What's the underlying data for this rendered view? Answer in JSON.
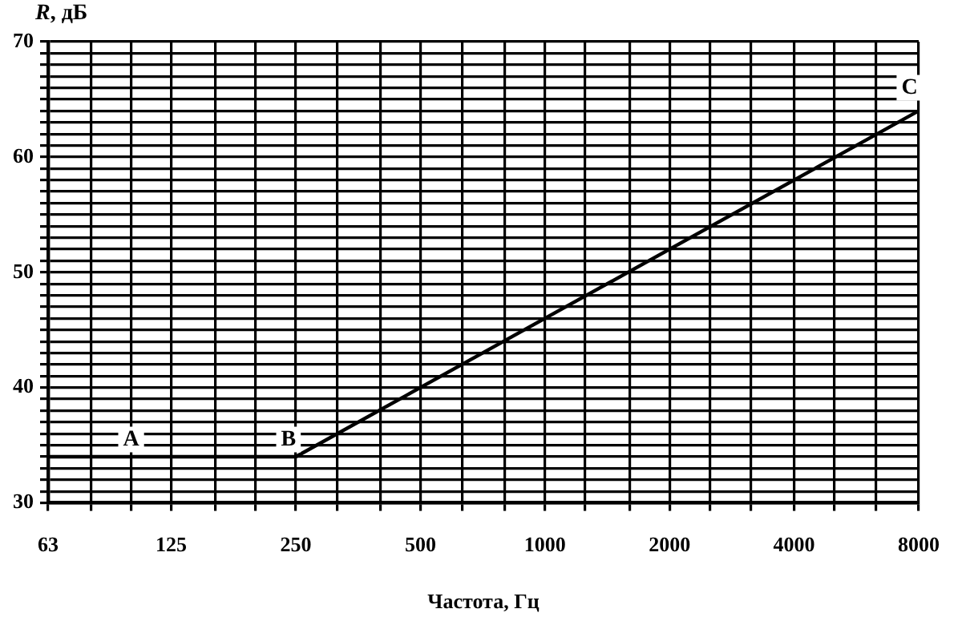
{
  "chart_data": {
    "type": "line",
    "xlabel": "Частота, Гц",
    "ylabel": "R, дБ",
    "log": "x",
    "grid": true,
    "legend": false,
    "marker": "none",
    "line_style": "solid",
    "xlim": [
      63,
      8000
    ],
    "xticks": [
      63,
      {
        "value": 80,
        "label": null
      },
      {
        "value": 100,
        "label": null
      },
      125,
      {
        "value": 160,
        "label": null
      },
      {
        "value": 200,
        "label": null
      },
      250,
      {
        "value": 315,
        "label": null
      },
      {
        "value": 400,
        "label": null
      },
      500,
      {
        "value": 630,
        "label": null
      },
      {
        "value": 800,
        "label": null
      },
      1000,
      {
        "value": 1250,
        "label": null
      },
      {
        "value": 1600,
        "label": null
      },
      2000,
      {
        "value": 2500,
        "label": null
      },
      {
        "value": 3150,
        "label": null
      },
      4000,
      {
        "value": 5000,
        "label": null
      },
      {
        "value": 6300,
        "label": null
      },
      8000
    ],
    "ylim": [
      30,
      70
    ],
    "yticks": [
      30,
      {
        "value": 31,
        "label": null
      },
      {
        "value": 32,
        "label": null
      },
      {
        "value": 33,
        "label": null
      },
      {
        "value": 34,
        "label": null
      },
      {
        "value": 35,
        "label": null
      },
      {
        "value": 36,
        "label": null
      },
      {
        "value": 37,
        "label": null
      },
      {
        "value": 38,
        "label": null
      },
      {
        "value": 39,
        "label": null
      },
      40,
      {
        "value": 41,
        "label": null
      },
      {
        "value": 42,
        "label": null
      },
      {
        "value": 43,
        "label": null
      },
      {
        "value": 44,
        "label": null
      },
      {
        "value": 45,
        "label": null
      },
      {
        "value": 46,
        "label": null
      },
      {
        "value": 47,
        "label": null
      },
      {
        "value": 48,
        "label": null
      },
      {
        "value": 49,
        "label": null
      },
      50,
      {
        "value": 51,
        "label": null
      },
      {
        "value": 52,
        "label": null
      },
      {
        "value": 53,
        "label": null
      },
      {
        "value": 54,
        "label": null
      },
      {
        "value": 55,
        "label": null
      },
      {
        "value": 56,
        "label": null
      },
      {
        "value": 57,
        "label": null
      },
      {
        "value": 58,
        "label": null
      },
      {
        "value": 59,
        "label": null
      },
      60,
      {
        "value": 61,
        "label": null
      },
      {
        "value": 62,
        "label": null
      },
      {
        "value": 63,
        "label": null
      },
      {
        "value": 64,
        "label": null
      },
      {
        "value": 65,
        "label": null
      },
      {
        "value": 66,
        "label": null
      },
      {
        "value": 67,
        "label": null
      },
      {
        "value": 68,
        "label": null
      },
      {
        "value": 69,
        "label": null
      },
      70
    ],
    "series": [
      {
        "color": "#000000",
        "x": [
          63,
          250,
          8000
        ],
        "values": [
          34,
          34,
          64
        ]
      }
    ],
    "annotations": [
      {
        "text": "A",
        "x": 100,
        "y": 35.5
      },
      {
        "text": "B",
        "x": 240,
        "y": 35.5
      },
      {
        "text": "C",
        "x": 7600,
        "y": 66
      }
    ]
  }
}
